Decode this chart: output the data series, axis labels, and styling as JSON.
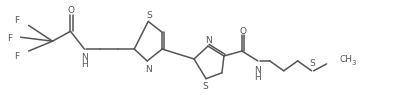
{
  "bg_color": "#ffffff",
  "line_color": "#555555",
  "text_color": "#555555",
  "line_width": 1.1,
  "font_size": 6.5,
  "fig_width": 4.13,
  "fig_height": 1.13,
  "dpi": 100,
  "xlim": [
    0,
    413
  ],
  "ylim": [
    0,
    113
  ]
}
